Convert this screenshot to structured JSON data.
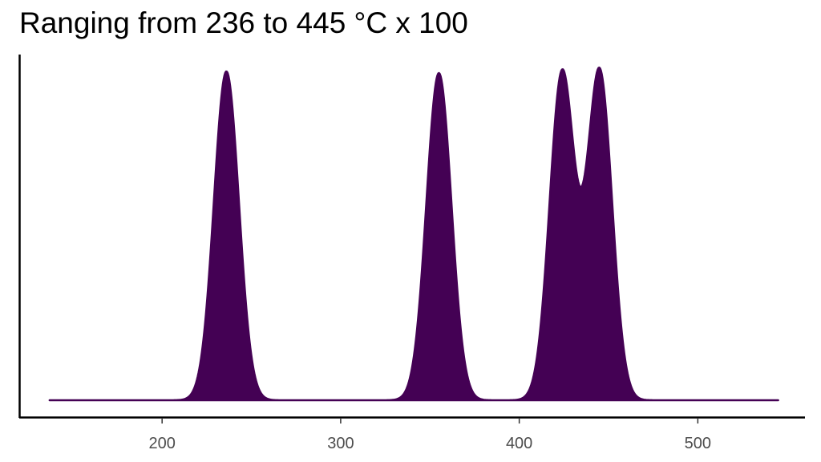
{
  "chart_data": {
    "type": "area",
    "title": "Ranging from 236 to 445 °C x 100",
    "xlabel": "",
    "ylabel": "",
    "xlim": [
      120,
      560
    ],
    "x_range": [
      137,
      545
    ],
    "x_ticks": [
      200,
      300,
      400,
      500
    ],
    "y_ticks": [],
    "grid": false,
    "legend": "none",
    "fill_color": "#440154",
    "series": [
      {
        "peaks": [
          {
            "center": 236,
            "relative_height": 1.0,
            "width": 7.0
          },
          {
            "center": 355,
            "relative_height": 0.995,
            "width": 7.0
          },
          {
            "center": 424,
            "relative_height": 0.995,
            "width": 7.0
          },
          {
            "center": 445,
            "relative_height": 1.0,
            "width": 7.0
          }
        ]
      }
    ]
  }
}
